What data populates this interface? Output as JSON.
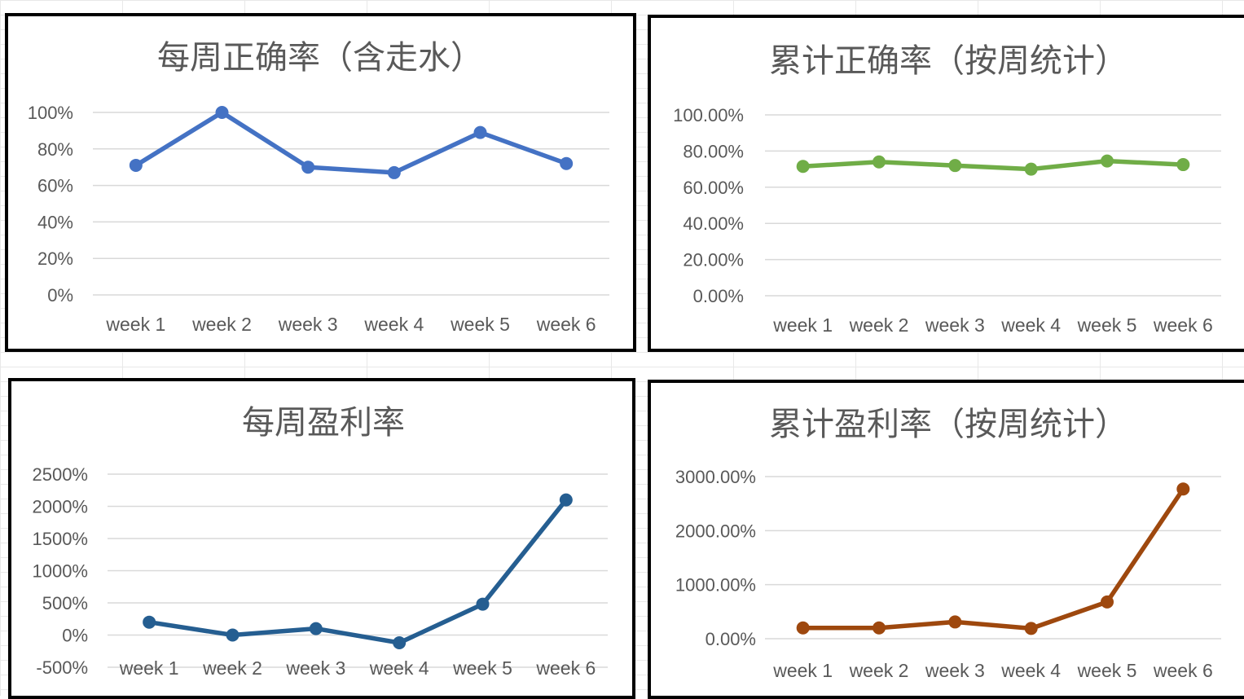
{
  "chart_data": [
    {
      "type": "line",
      "title": "每周正确率（含走水）",
      "categories": [
        "week 1",
        "week 2",
        "week 3",
        "week 4",
        "week 5",
        "week 6"
      ],
      "series": [
        {
          "values": [
            71,
            100,
            70,
            67,
            89,
            72
          ]
        }
      ],
      "y_unit": "%",
      "ylim": [
        0,
        100
      ],
      "yticks": [
        0,
        20,
        40,
        60,
        80,
        100
      ],
      "ytick_labels": [
        "0%",
        "20%",
        "40%",
        "60%",
        "80%",
        "100%"
      ],
      "color": "#4472c4",
      "grid": true,
      "legend": "none"
    },
    {
      "type": "line",
      "title": "累计正确率（按周统计）",
      "categories": [
        "week 1",
        "week 2",
        "week 3",
        "week 4",
        "week 5",
        "week 6"
      ],
      "series": [
        {
          "values": [
            71.5,
            74,
            72,
            70,
            74.5,
            72.5
          ]
        }
      ],
      "y_unit": "%",
      "ylim": [
        0,
        100
      ],
      "yticks": [
        0,
        20,
        40,
        60,
        80,
        100
      ],
      "ytick_labels": [
        "0.00%",
        "20.00%",
        "40.00%",
        "60.00%",
        "80.00%",
        "100.00%"
      ],
      "color": "#70ad47",
      "grid": true,
      "legend": "none"
    },
    {
      "type": "line",
      "title": "每周盈利率",
      "categories": [
        "week 1",
        "week 2",
        "week 3",
        "week 4",
        "week 5",
        "week 6"
      ],
      "series": [
        {
          "values": [
            200,
            0,
            100,
            -120,
            480,
            2100
          ]
        }
      ],
      "y_unit": "%",
      "ylim": [
        -500,
        2500
      ],
      "yticks": [
        -500,
        0,
        500,
        1000,
        1500,
        2000,
        2500
      ],
      "ytick_labels": [
        "-500%",
        "0%",
        "500%",
        "1000%",
        "1500%",
        "2000%",
        "2500%"
      ],
      "color": "#255e91",
      "grid": true,
      "legend": "none"
    },
    {
      "type": "line",
      "title": "累计盈利率（按周统计）",
      "categories": [
        "week 1",
        "week 2",
        "week 3",
        "week 4",
        "week 5",
        "week 6"
      ],
      "series": [
        {
          "values": [
            200,
            200,
            310,
            190,
            680,
            2770
          ]
        }
      ],
      "y_unit": "%",
      "ylim": [
        0,
        3000
      ],
      "yticks": [
        0,
        1000,
        2000,
        3000
      ],
      "ytick_labels": [
        "0.00%",
        "1000.00%",
        "2000.00%",
        "3000.00%"
      ],
      "color": "#9e480e",
      "grid": true,
      "legend": "none"
    }
  ]
}
